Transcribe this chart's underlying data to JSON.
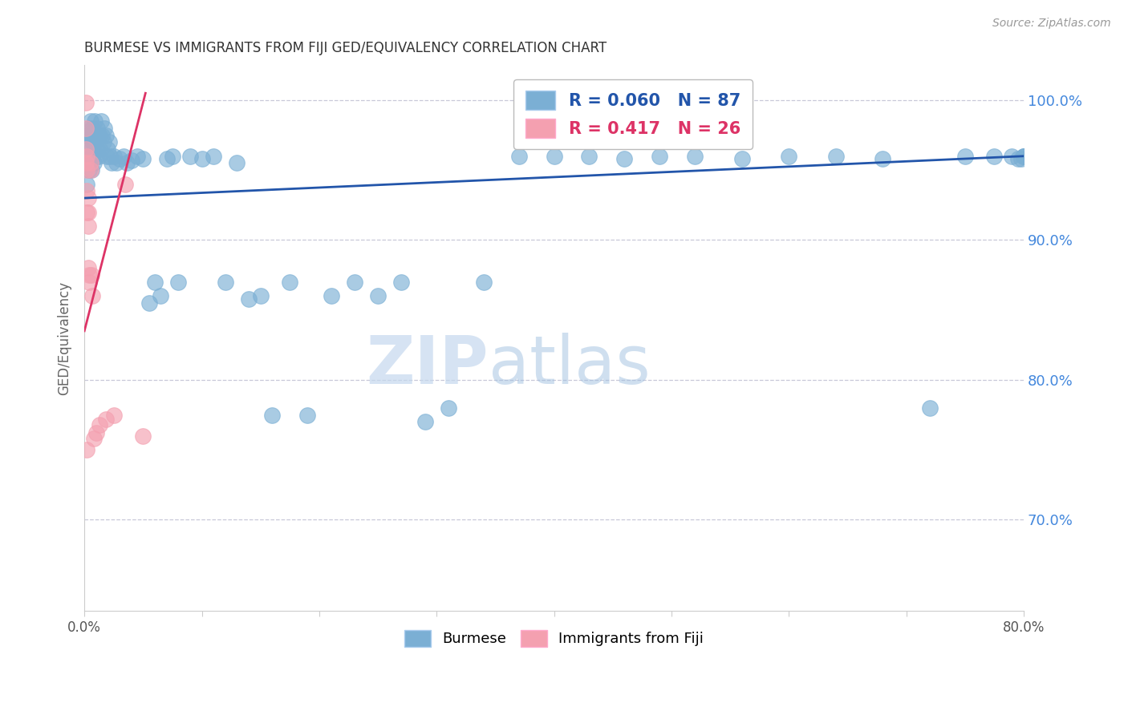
{
  "title": "BURMESE VS IMMIGRANTS FROM FIJI GED/EQUIVALENCY CORRELATION CHART",
  "source": "Source: ZipAtlas.com",
  "xlabel": "",
  "ylabel": "GED/Equivalency",
  "xlim": [
    0.0,
    0.8
  ],
  "ylim": [
    0.635,
    1.025
  ],
  "xticks": [
    0.0,
    0.1,
    0.2,
    0.3,
    0.4,
    0.5,
    0.6,
    0.7,
    0.8
  ],
  "xticklabels": [
    "0.0%",
    "",
    "",
    "",
    "",
    "",
    "",
    "",
    "80.0%"
  ],
  "yticks": [
    0.7,
    0.8,
    0.9,
    1.0
  ],
  "yticklabels": [
    "70.0%",
    "80.0%",
    "90.0%",
    "100.0%"
  ],
  "blue_R": 0.06,
  "blue_N": 87,
  "pink_R": 0.417,
  "pink_N": 26,
  "blue_color": "#7BAFD4",
  "pink_color": "#F4A0B0",
  "blue_line_color": "#2255AA",
  "pink_line_color": "#DD3366",
  "legend_label_blue": "Burmese",
  "legend_label_pink": "Immigrants from Fiji",
  "background_color": "#ffffff",
  "blue_scatter_x": [
    0.001,
    0.002,
    0.002,
    0.003,
    0.003,
    0.004,
    0.004,
    0.005,
    0.005,
    0.006,
    0.006,
    0.006,
    0.007,
    0.007,
    0.007,
    0.008,
    0.008,
    0.009,
    0.009,
    0.01,
    0.01,
    0.011,
    0.011,
    0.012,
    0.012,
    0.013,
    0.013,
    0.014,
    0.015,
    0.016,
    0.017,
    0.018,
    0.019,
    0.02,
    0.021,
    0.022,
    0.023,
    0.025,
    0.027,
    0.03,
    0.033,
    0.036,
    0.04,
    0.045,
    0.05,
    0.055,
    0.06,
    0.065,
    0.07,
    0.075,
    0.08,
    0.09,
    0.1,
    0.11,
    0.12,
    0.13,
    0.14,
    0.15,
    0.16,
    0.175,
    0.19,
    0.21,
    0.23,
    0.25,
    0.27,
    0.29,
    0.31,
    0.34,
    0.37,
    0.4,
    0.43,
    0.46,
    0.49,
    0.52,
    0.56,
    0.6,
    0.64,
    0.68,
    0.72,
    0.75,
    0.775,
    0.79,
    0.795,
    0.798,
    0.8,
    0.8,
    0.8
  ],
  "blue_scatter_y": [
    0.96,
    0.975,
    0.94,
    0.98,
    0.955,
    0.97,
    0.95,
    0.985,
    0.96,
    0.975,
    0.965,
    0.95,
    0.98,
    0.97,
    0.96,
    0.975,
    0.955,
    0.985,
    0.97,
    0.975,
    0.96,
    0.98,
    0.965,
    0.975,
    0.96,
    0.975,
    0.965,
    0.985,
    0.975,
    0.97,
    0.98,
    0.975,
    0.96,
    0.965,
    0.97,
    0.96,
    0.955,
    0.96,
    0.955,
    0.958,
    0.96,
    0.955,
    0.957,
    0.96,
    0.958,
    0.855,
    0.87,
    0.86,
    0.958,
    0.96,
    0.87,
    0.96,
    0.958,
    0.96,
    0.87,
    0.955,
    0.858,
    0.86,
    0.775,
    0.87,
    0.775,
    0.86,
    0.87,
    0.86,
    0.87,
    0.77,
    0.78,
    0.87,
    0.96,
    0.96,
    0.96,
    0.958,
    0.96,
    0.96,
    0.958,
    0.96,
    0.96,
    0.958,
    0.78,
    0.96,
    0.96,
    0.96,
    0.958,
    0.958,
    0.96,
    0.96,
    0.96
  ],
  "pink_scatter_x": [
    0.001,
    0.001,
    0.001,
    0.001,
    0.002,
    0.002,
    0.002,
    0.002,
    0.002,
    0.003,
    0.003,
    0.003,
    0.003,
    0.004,
    0.004,
    0.005,
    0.005,
    0.006,
    0.007,
    0.008,
    0.01,
    0.013,
    0.018,
    0.025,
    0.035,
    0.05
  ],
  "pink_scatter_y": [
    0.998,
    0.98,
    0.965,
    0.955,
    0.96,
    0.95,
    0.935,
    0.92,
    0.75,
    0.93,
    0.92,
    0.91,
    0.88,
    0.875,
    0.87,
    0.955,
    0.95,
    0.875,
    0.86,
    0.758,
    0.762,
    0.768,
    0.772,
    0.775,
    0.94,
    0.76
  ]
}
